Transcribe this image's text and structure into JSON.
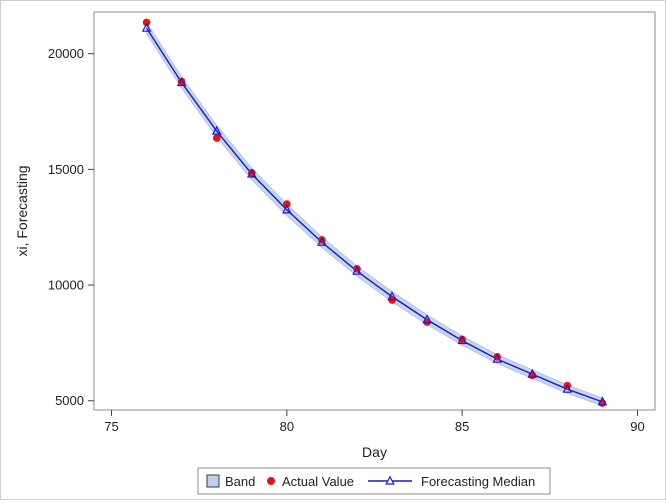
{
  "chart_data": {
    "type": "line",
    "title": "",
    "xlabel": "Day",
    "ylabel": "xi, Forecasting",
    "xlim": [
      74.5,
      90.5
    ],
    "ylim": [
      4600,
      21800
    ],
    "xticks": [
      75,
      80,
      85,
      90
    ],
    "yticks": [
      5000,
      10000,
      15000,
      20000
    ],
    "grid": false,
    "legend_position": "bottom",
    "colors": {
      "actual": "#ee1111",
      "median": "#1a1acc",
      "band_fill": "#bcd0ec",
      "band_edge": "#8aa8d6"
    },
    "legend": [
      {
        "label": "Band",
        "marker": "square"
      },
      {
        "label": "Actual Value",
        "marker": "circle"
      },
      {
        "label": "Forecasting Median",
        "marker": "triangle-line"
      }
    ],
    "x": [
      76,
      77,
      78,
      79,
      80,
      81,
      82,
      83,
      84,
      85,
      86,
      87,
      88,
      89
    ],
    "series": [
      {
        "name": "Actual Value",
        "values": [
          21350,
          18800,
          16350,
          14850,
          13500,
          11950,
          10700,
          9350,
          8400,
          7650,
          6900,
          6100,
          5650,
          4900
        ]
      },
      {
        "name": "Forecasting Median",
        "values": [
          21100,
          18750,
          16650,
          14800,
          13250,
          11850,
          10600,
          9500,
          8500,
          7600,
          6800,
          6150,
          5500,
          4950
        ]
      },
      {
        "name": "Band",
        "lower": [
          20850,
          18500,
          16400,
          14550,
          13000,
          11620,
          10380,
          9280,
          8290,
          7400,
          6610,
          5960,
          5320,
          4780
        ],
        "upper": [
          21350,
          19000,
          16900,
          15050,
          13500,
          12080,
          10820,
          9720,
          8710,
          7800,
          6990,
          6340,
          5680,
          5120
        ]
      }
    ]
  }
}
